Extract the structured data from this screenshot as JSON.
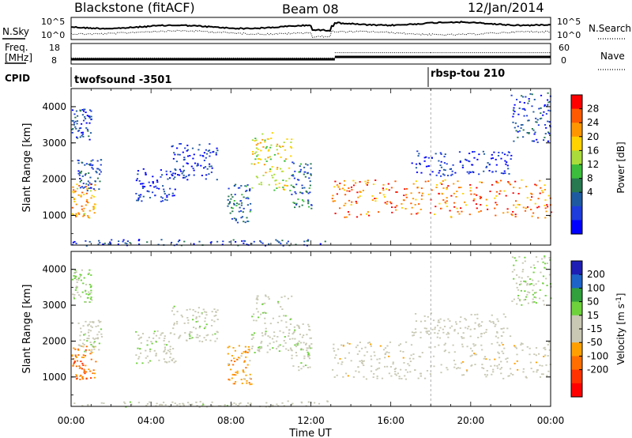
{
  "header": {
    "station": "Blackstone (fitACF)",
    "beam": "Beam 08",
    "date": "12/Jan/2014"
  },
  "top_panels": {
    "nsky_label": "N.Sky",
    "nsearch_label": "N.Search",
    "noise_ticks_left": [
      "10^5",
      "10^0"
    ],
    "noise_ticks_right": [
      "10^5",
      "10^0"
    ],
    "freq_label_1": "Freq.",
    "freq_label_2": "[MHz]",
    "freq_ticks": [
      "18",
      "8"
    ],
    "nave_label": "Nave",
    "nave_ticks": [
      "60",
      "0"
    ],
    "cpid_label": "CPID",
    "cpid_segments": [
      {
        "name": "twofsound -3501",
        "start_hour": 0,
        "end_hour": 18.0
      },
      {
        "name": "rbsp-tou 210",
        "start_hour": 18.0,
        "end_hour": 24
      }
    ]
  },
  "axes": {
    "xlabel": "Time UT",
    "x_ticks": [
      "00:00",
      "04:00",
      "08:00",
      "12:00",
      "16:00",
      "20:00",
      "00:00"
    ],
    "ylabel": "Slant Range [km]",
    "y_ticks": [
      "1000",
      "2000",
      "3000",
      "4000"
    ]
  },
  "power_colorbar": {
    "label": "Power [dB]",
    "ticks": [
      "28",
      "24",
      "20",
      "16",
      "12",
      "8",
      "4"
    ],
    "colors": [
      "#ff0000",
      "#ff5a00",
      "#ff9600",
      "#ffd200",
      "#aadc3c",
      "#3cbe3c",
      "#287850",
      "#1e5aa0",
      "#1e3cdc",
      "#0000ff"
    ]
  },
  "velocity_colorbar": {
    "label": "Velocity [m s^-1]",
    "ticks": [
      "200",
      "100",
      "50",
      "15",
      "-15",
      "-50",
      "-100",
      "-200"
    ],
    "colors": [
      "#1e1eb4",
      "#1e64c8",
      "#32a03c",
      "#6ed23c",
      "#c8c8b4",
      "#c8c8b4",
      "#ffa000",
      "#ff6e00",
      "#ff3200",
      "#ff0000"
    ]
  },
  "chart_data": {
    "type": "heatmap",
    "title": "Blackstone (fitACF)  Beam 08  12/Jan/2014",
    "xlabel": "Time UT",
    "ylabel": "Slant Range [km]",
    "xlim": [
      0,
      24
    ],
    "ylim": [
      180,
      4500
    ],
    "panels": [
      "Power [dB]",
      "Velocity [m s^-1]"
    ],
    "frequency_mhz": [
      {
        "start_hour": 0,
        "end_hour": 13.2,
        "value": 10.5
      },
      {
        "start_hour": 13.2,
        "end_hour": 24,
        "value": 12
      }
    ],
    "nave": [
      {
        "start_hour": 0,
        "end_hour": 13.2,
        "value": 20
      },
      {
        "start_hour": 13.2,
        "end_hour": 18,
        "value": 40
      },
      {
        "start_hour": 18,
        "end_hour": 24,
        "value": 40
      }
    ],
    "scatter_regions": [
      {
        "t0": 0.0,
        "t1": 1.0,
        "r0": 3100,
        "r1": 4000,
        "power": 8,
        "velocity": 60
      },
      {
        "t0": 0.0,
        "t1": 1.2,
        "r0": 950,
        "r1": 1900,
        "power": 24,
        "velocity": -120
      },
      {
        "t0": 0.3,
        "t1": 1.5,
        "r0": 1700,
        "r1": 2600,
        "power": 8,
        "velocity": 20
      },
      {
        "t0": 3.2,
        "t1": 5.2,
        "r0": 1400,
        "r1": 2300,
        "power": 6,
        "velocity": 20
      },
      {
        "t0": 5.0,
        "t1": 7.3,
        "r0": 2000,
        "r1": 3000,
        "power": 6,
        "velocity": 20
      },
      {
        "t0": 7.8,
        "t1": 9.0,
        "r0": 800,
        "r1": 1900,
        "power": 10,
        "velocity": -80
      },
      {
        "t0": 9.0,
        "t1": 11.0,
        "r0": 1700,
        "r1": 3300,
        "power": 20,
        "velocity": 20
      },
      {
        "t0": 11.0,
        "t1": 12.0,
        "r0": 1200,
        "r1": 2500,
        "power": 10,
        "velocity": 20
      },
      {
        "t0": 13.0,
        "t1": 24.0,
        "r0": 950,
        "r1": 2000,
        "power": 26,
        "velocity": -10
      },
      {
        "t0": 17.0,
        "t1": 22.0,
        "r0": 2100,
        "r1": 2800,
        "power": 6,
        "velocity": 0
      },
      {
        "t0": 22.0,
        "t1": 24.0,
        "r0": 3000,
        "r1": 4400,
        "power": 8,
        "velocity": 40
      },
      {
        "t0": 0.0,
        "t1": 12.8,
        "r0": 180,
        "r1": 350,
        "power": 8,
        "velocity": 10
      }
    ]
  }
}
